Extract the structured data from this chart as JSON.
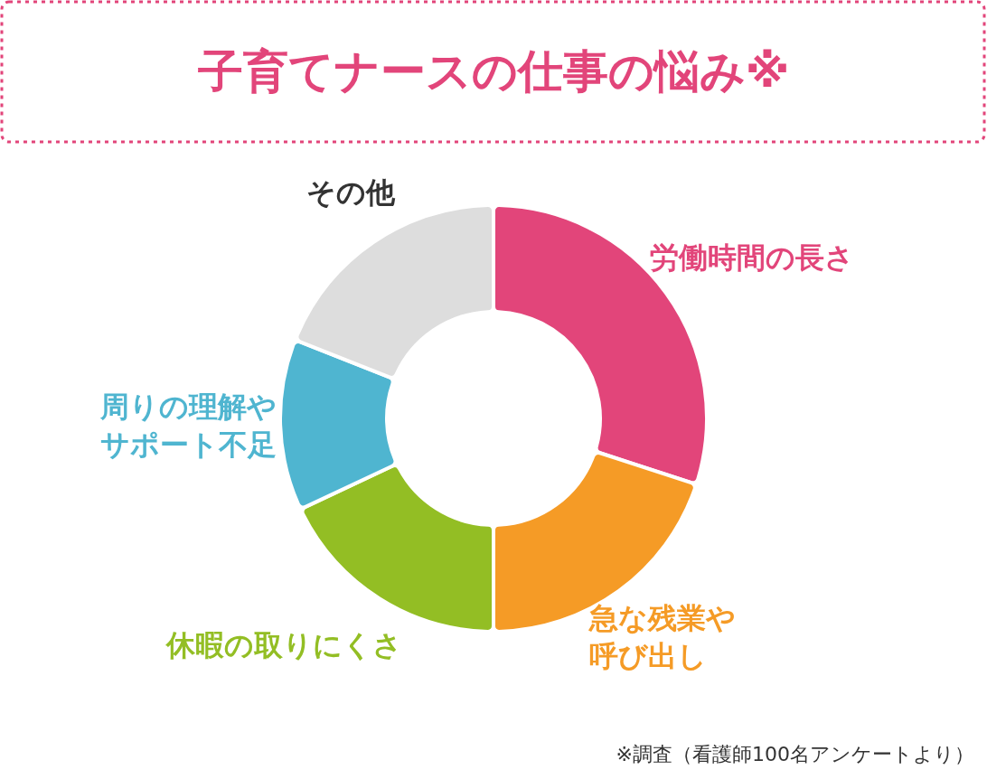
{
  "chart_data": {
    "type": "donut",
    "title": "子育てナースの仕事の悩み※",
    "categories": [
      "労働時間の長さ",
      "急な残業や呼び出し",
      "休暇の取りにくさ",
      "周りの理解やサポート不足",
      "その他"
    ],
    "values": [
      30,
      20,
      18,
      13,
      19
    ],
    "colors": [
      "#e2457a",
      "#f59b26",
      "#93be24",
      "#4fb5d0",
      "#dddddd"
    ],
    "annotations": [
      "※調査（看護師100名アンケートより）"
    ]
  }
}
